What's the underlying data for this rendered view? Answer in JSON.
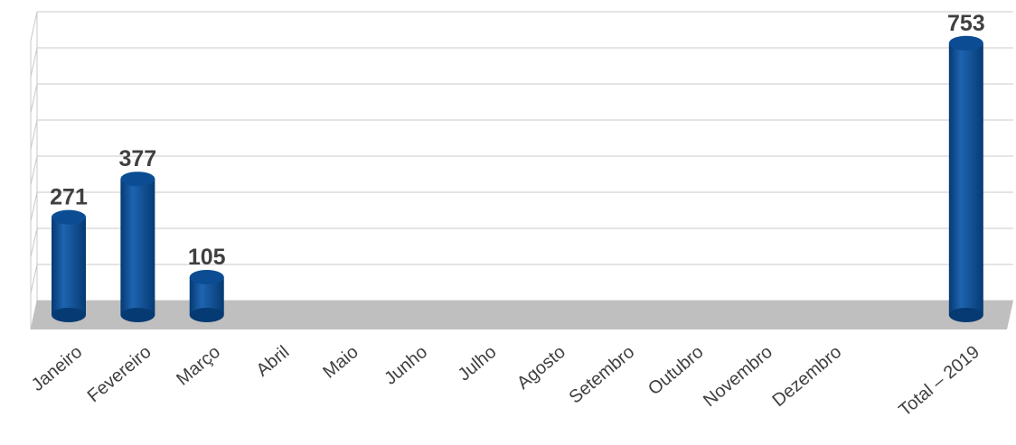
{
  "chart_data": {
    "type": "bar",
    "categories": [
      "Janeiro",
      "Fevereiro",
      "Março",
      "Abril",
      "Maio",
      "Junho",
      "Julho",
      "Agosto",
      "Setembro",
      "Outubro",
      "Novembro",
      "Dezembro",
      "",
      "Total – 2019"
    ],
    "values": [
      271,
      377,
      105,
      null,
      null,
      null,
      null,
      null,
      null,
      null,
      null,
      null,
      null,
      753
    ],
    "data_labels": [
      "271",
      "377",
      "105",
      "",
      "",
      "",
      "",
      "",
      "",
      "",
      "",
      "",
      "",
      "753"
    ],
    "title": "",
    "xlabel": "",
    "ylabel": "",
    "ylim": [
      0,
      800
    ],
    "grid": true,
    "legend": "none",
    "style": "3d-cylinder",
    "colors": {
      "bar": "#0b4c92",
      "bar_dark": "#063a73",
      "bar_light": "#1e64b0",
      "floor": "#bfbfbf",
      "grid": "#c8c8c8",
      "text": "#404040"
    }
  }
}
